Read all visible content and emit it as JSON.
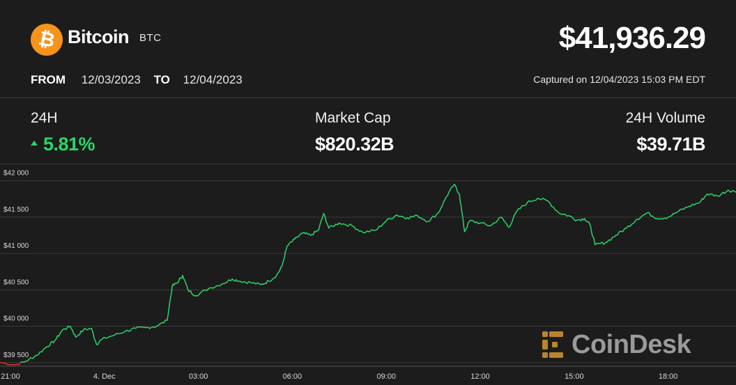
{
  "header": {
    "coin_name": "Bitcoin",
    "coin_symbol": "BTC",
    "price": "$41,936.29",
    "from_label": "FROM",
    "from_date": "12/03/2023",
    "to_label": "TO",
    "to_date": "12/04/2023",
    "captured": "Captured on 12/04/2023 15:03 PM EDT",
    "logo_icon": "bitcoin-logo-icon",
    "brand_color": "#f7931a"
  },
  "stats": {
    "change_label": "24H",
    "change_value": "5.81%",
    "change_direction": "up",
    "market_cap_label": "Market Cap",
    "market_cap_value": "$820.32B",
    "volume_label": "24H Volume",
    "volume_value": "$39.71B"
  },
  "watermark": {
    "text": "CoinDesk",
    "icon": "coindesk-logo-icon"
  },
  "chart_data": {
    "type": "line",
    "title": "",
    "xlabel": "",
    "ylabel": "",
    "ylim": [
      39450,
      42150
    ],
    "yticks": [
      39500,
      40000,
      40500,
      41000,
      41500,
      42000
    ],
    "ytick_labels": [
      "$39 500",
      "$40 000",
      "$40 500",
      "$41 000",
      "$41 500",
      "$42 000"
    ],
    "xticks": [
      {
        "x": "2023-12-03 21:00",
        "label": "21:00"
      },
      {
        "x": "2023-12-04 00:00",
        "label": "4. Dec"
      },
      {
        "x": "2023-12-04 03:00",
        "label": "03:00"
      },
      {
        "x": "2023-12-04 06:00",
        "label": "06:00"
      },
      {
        "x": "2023-12-04 09:00",
        "label": "09:00"
      },
      {
        "x": "2023-12-04 12:00",
        "label": "12:00"
      },
      {
        "x": "2023-12-04 15:00",
        "label": "15:00"
      },
      {
        "x": "2023-12-04 18:00",
        "label": "18:00"
      }
    ],
    "xlim": [
      "2023-12-03 20:40",
      "2023-12-04 20:10"
    ],
    "grid": true,
    "line_color": "#2bd46b",
    "down_color": "#d9342b",
    "series": [
      {
        "points": [
          [
            "2023-12-03 20:40",
            39500
          ],
          [
            "2023-12-03 21:10",
            39470
          ],
          [
            "2023-12-03 21:30",
            39520
          ],
          [
            "2023-12-03 21:50",
            39600
          ],
          [
            "2023-12-03 22:10",
            39720
          ],
          [
            "2023-12-03 22:25",
            39800
          ],
          [
            "2023-12-03 22:40",
            39950
          ],
          [
            "2023-12-03 22:55",
            40000
          ],
          [
            "2023-12-03 23:05",
            39850
          ],
          [
            "2023-12-03 23:20",
            39950
          ],
          [
            "2023-12-03 23:35",
            39970
          ],
          [
            "2023-12-03 23:45",
            39750
          ],
          [
            "2023-12-03 23:55",
            39820
          ],
          [
            "2023-12-04 00:20",
            39880
          ],
          [
            "2023-12-04 00:40",
            39930
          ],
          [
            "2023-12-04 01:00",
            39970
          ],
          [
            "2023-12-04 01:20",
            39980
          ],
          [
            "2023-12-04 01:40",
            40000
          ],
          [
            "2023-12-04 02:00",
            40080
          ],
          [
            "2023-12-04 02:10",
            40550
          ],
          [
            "2023-12-04 02:20",
            40600
          ],
          [
            "2023-12-04 02:30",
            40700
          ],
          [
            "2023-12-04 02:40",
            40500
          ],
          [
            "2023-12-04 02:55",
            40420
          ],
          [
            "2023-12-04 03:20",
            40520
          ],
          [
            "2023-12-04 03:45",
            40580
          ],
          [
            "2023-12-04 04:05",
            40650
          ],
          [
            "2023-12-04 04:20",
            40620
          ],
          [
            "2023-12-04 04:40",
            40600
          ],
          [
            "2023-12-04 05:00",
            40570
          ],
          [
            "2023-12-04 05:15",
            40620
          ],
          [
            "2023-12-04 05:30",
            40700
          ],
          [
            "2023-12-04 05:40",
            40820
          ],
          [
            "2023-12-04 05:50",
            41100
          ],
          [
            "2023-12-04 06:05",
            41200
          ],
          [
            "2023-12-04 06:20",
            41280
          ],
          [
            "2023-12-04 06:35",
            41250
          ],
          [
            "2023-12-04 06:50",
            41320
          ],
          [
            "2023-12-04 07:00",
            41550
          ],
          [
            "2023-12-04 07:10",
            41350
          ],
          [
            "2023-12-04 07:30",
            41420
          ],
          [
            "2023-12-04 07:55",
            41380
          ],
          [
            "2023-12-04 08:15",
            41290
          ],
          [
            "2023-12-04 08:40",
            41320
          ],
          [
            "2023-12-04 09:00",
            41450
          ],
          [
            "2023-12-04 09:20",
            41530
          ],
          [
            "2023-12-04 09:40",
            41490
          ],
          [
            "2023-12-04 10:00",
            41520
          ],
          [
            "2023-12-04 10:20",
            41440
          ],
          [
            "2023-12-04 10:40",
            41560
          ],
          [
            "2023-12-04 10:55",
            41780
          ],
          [
            "2023-12-04 11:10",
            41950
          ],
          [
            "2023-12-04 11:20",
            41820
          ],
          [
            "2023-12-04 11:30",
            41300
          ],
          [
            "2023-12-04 11:40",
            41450
          ],
          [
            "2023-12-04 12:00",
            41420
          ],
          [
            "2023-12-04 12:20",
            41380
          ],
          [
            "2023-12-04 12:40",
            41500
          ],
          [
            "2023-12-04 12:55",
            41360
          ],
          [
            "2023-12-04 13:10",
            41580
          ],
          [
            "2023-12-04 13:30",
            41700
          ],
          [
            "2023-12-04 13:50",
            41760
          ],
          [
            "2023-12-04 14:10",
            41720
          ],
          [
            "2023-12-04 14:30",
            41560
          ],
          [
            "2023-12-04 14:50",
            41520
          ],
          [
            "2023-12-04 15:05",
            41460
          ],
          [
            "2023-12-04 15:20",
            41480
          ],
          [
            "2023-12-04 15:30",
            41400
          ],
          [
            "2023-12-04 15:40",
            41120
          ],
          [
            "2023-12-04 16:00",
            41150
          ],
          [
            "2023-12-04 16:20",
            41250
          ],
          [
            "2023-12-04 16:40",
            41350
          ],
          [
            "2023-12-04 17:00",
            41470
          ],
          [
            "2023-12-04 17:20",
            41560
          ],
          [
            "2023-12-04 17:40",
            41480
          ],
          [
            "2023-12-04 18:00",
            41500
          ],
          [
            "2023-12-04 18:20",
            41580
          ],
          [
            "2023-12-04 18:40",
            41650
          ],
          [
            "2023-12-04 19:00",
            41700
          ],
          [
            "2023-12-04 19:15",
            41820
          ],
          [
            "2023-12-04 19:35",
            41790
          ],
          [
            "2023-12-04 19:55",
            41870
          ],
          [
            "2023-12-04 20:10",
            41850
          ]
        ]
      }
    ]
  }
}
